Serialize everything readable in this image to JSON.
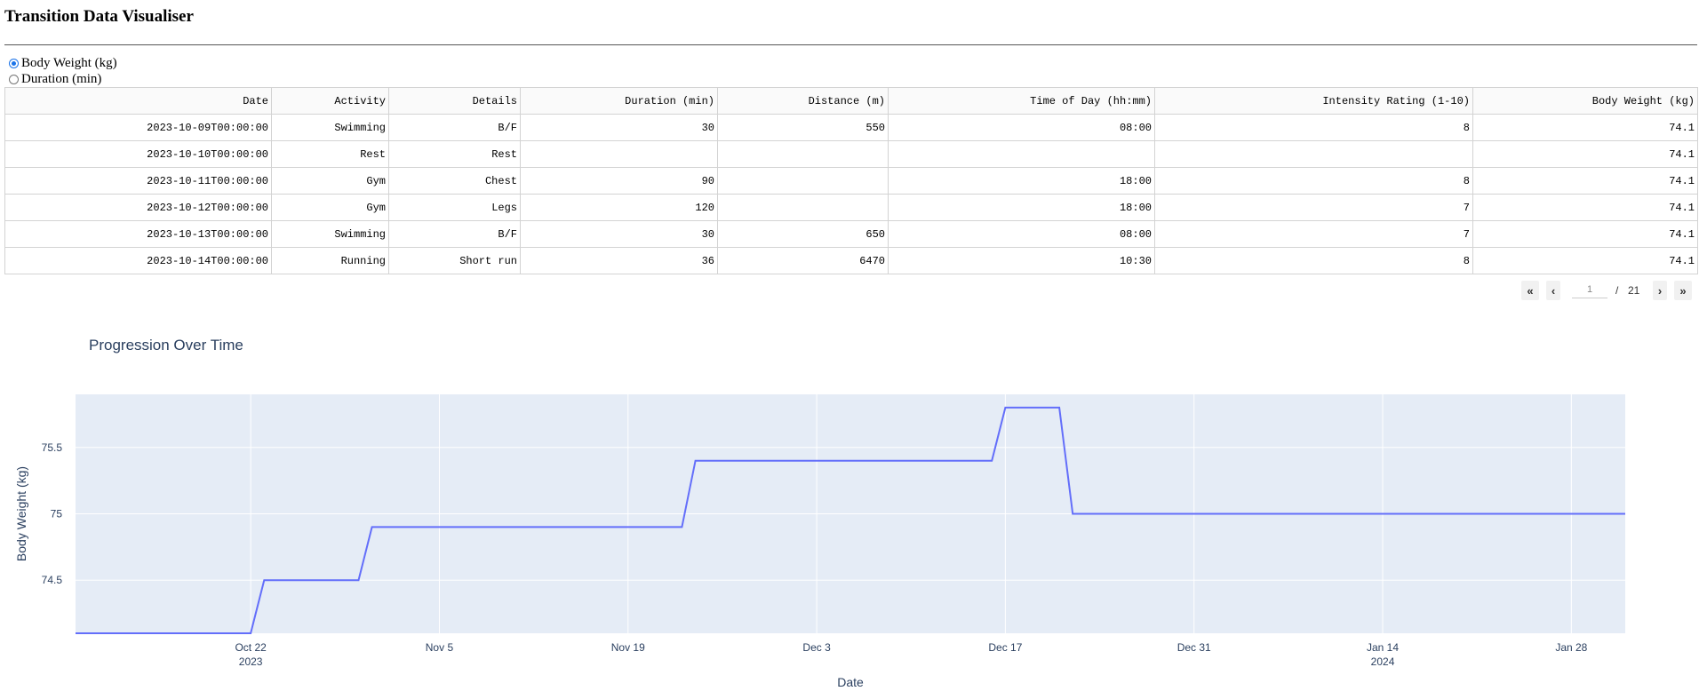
{
  "app": {
    "title": "Transition Data Visualiser"
  },
  "metric_selector": {
    "options": [
      {
        "label": "Body Weight (kg)",
        "checked": true
      },
      {
        "label": "Duration (min)",
        "checked": false
      }
    ]
  },
  "table": {
    "columns": [
      "Date",
      "Activity",
      "Details",
      "Duration (min)",
      "Distance (m)",
      "Time of Day (hh:mm)",
      "Intensity Rating (1-10)",
      "Body Weight (kg)"
    ],
    "rows": [
      [
        "2023-10-09T00:00:00",
        "Swimming",
        "B/F",
        "30",
        "550",
        "08:00",
        "8",
        "74.1"
      ],
      [
        "2023-10-10T00:00:00",
        "Rest",
        "Rest",
        "",
        "",
        "",
        "",
        "74.1"
      ],
      [
        "2023-10-11T00:00:00",
        "Gym",
        "Chest",
        "90",
        "",
        "18:00",
        "8",
        "74.1"
      ],
      [
        "2023-10-12T00:00:00",
        "Gym",
        "Legs",
        "120",
        "",
        "18:00",
        "7",
        "74.1"
      ],
      [
        "2023-10-13T00:00:00",
        "Swimming",
        "B/F",
        "30",
        "650",
        "08:00",
        "7",
        "74.1"
      ],
      [
        "2023-10-14T00:00:00",
        "Running",
        "Short run",
        "36",
        "6470",
        "10:30",
        "8",
        "74.1"
      ]
    ]
  },
  "pagination": {
    "current_page": "1",
    "separator": "/",
    "total_pages": "21",
    "first_icon": "double-chevron-left-icon",
    "prev_icon": "chevron-left-icon",
    "next_icon": "chevron-right-icon",
    "last_icon": "double-chevron-right-icon"
  },
  "chart_data": {
    "type": "line",
    "title": "Progression Over Time",
    "xlabel": "Date",
    "ylabel": "Body Weight (kg)",
    "x_range": [
      "2023-10-09",
      "2024-02-01"
    ],
    "ylim": [
      74.1,
      75.9
    ],
    "y_ticks": [
      "74.5",
      "75",
      "75.5"
    ],
    "x_ticks": [
      {
        "date": "2023-10-22",
        "label": "Oct 22",
        "sublabel": "2023"
      },
      {
        "date": "2023-11-05",
        "label": "Nov 5",
        "sublabel": ""
      },
      {
        "date": "2023-11-19",
        "label": "Nov 19",
        "sublabel": ""
      },
      {
        "date": "2023-12-03",
        "label": "Dec 3",
        "sublabel": ""
      },
      {
        "date": "2023-12-17",
        "label": "Dec 17",
        "sublabel": ""
      },
      {
        "date": "2023-12-31",
        "label": "Dec 31",
        "sublabel": ""
      },
      {
        "date": "2024-01-14",
        "label": "Jan 14",
        "sublabel": "2024"
      },
      {
        "date": "2024-01-28",
        "label": "Jan 28",
        "sublabel": ""
      }
    ],
    "grid": true,
    "series": [
      {
        "color": "#636efa",
        "points": [
          {
            "x": "2023-10-09",
            "y": 74.1
          },
          {
            "x": "2023-10-22",
            "y": 74.1
          },
          {
            "x": "2023-10-23",
            "y": 74.5
          },
          {
            "x": "2023-10-30",
            "y": 74.5
          },
          {
            "x": "2023-10-31",
            "y": 74.9
          },
          {
            "x": "2023-11-23",
            "y": 74.9
          },
          {
            "x": "2023-11-24",
            "y": 75.4
          },
          {
            "x": "2023-12-16",
            "y": 75.4
          },
          {
            "x": "2023-12-17",
            "y": 75.8
          },
          {
            "x": "2023-12-21",
            "y": 75.8
          },
          {
            "x": "2023-12-22",
            "y": 75.0
          },
          {
            "x": "2024-02-01",
            "y": 75.0
          }
        ]
      }
    ],
    "colors": {
      "plot_bg": "#e5ecf6",
      "grid": "#ffffff",
      "text": "#2a3f5f"
    }
  }
}
